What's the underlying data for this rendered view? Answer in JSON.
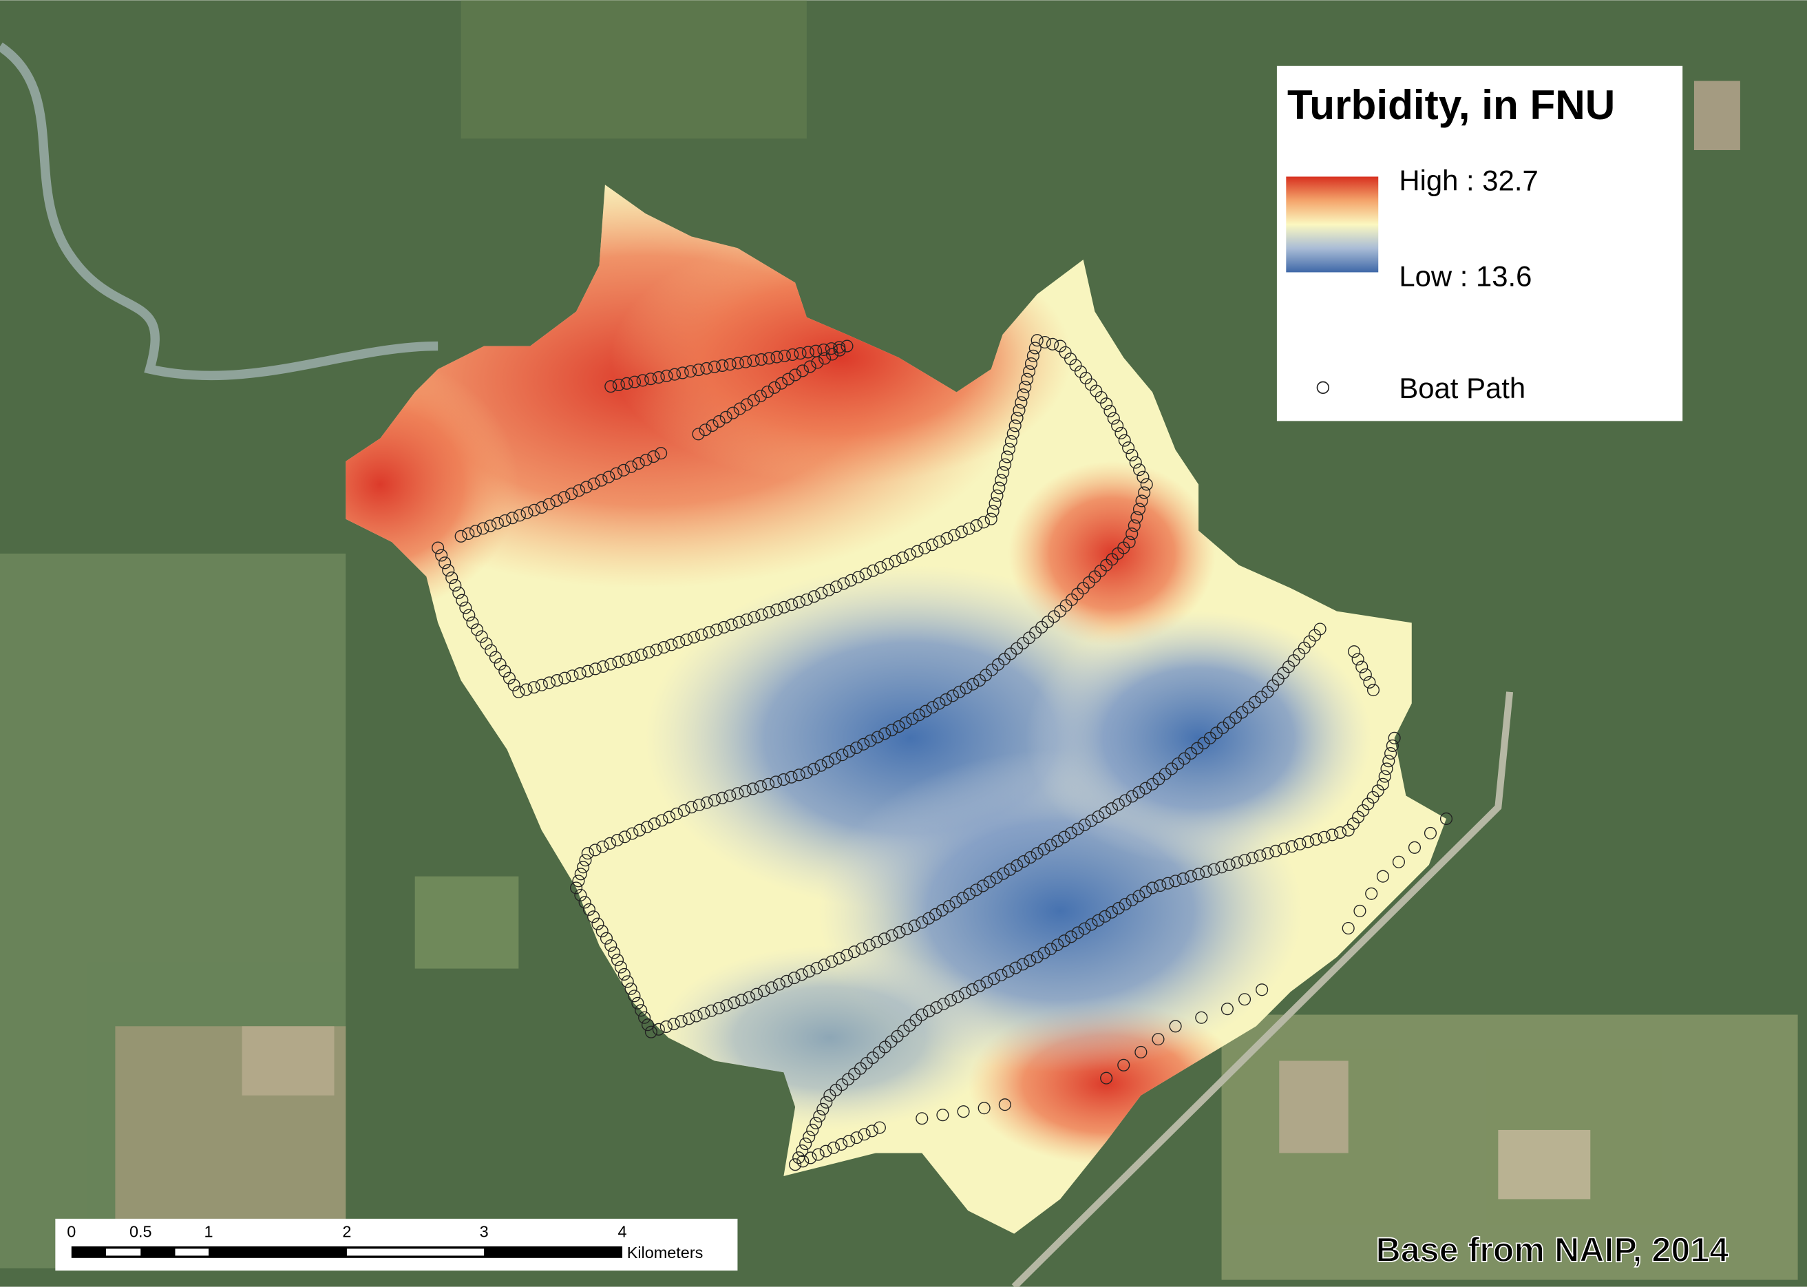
{
  "legend": {
    "title": "Turbidity, in FNU",
    "high": "High : 32.7",
    "low": "Low : 13.6",
    "boat_path": "Boat Path"
  },
  "scale_bar": {
    "labels": [
      "0",
      "0.5",
      "1",
      "2",
      "3",
      "4"
    ],
    "unit": "Kilometers"
  },
  "credit": "Base from NAIP, 2014"
}
